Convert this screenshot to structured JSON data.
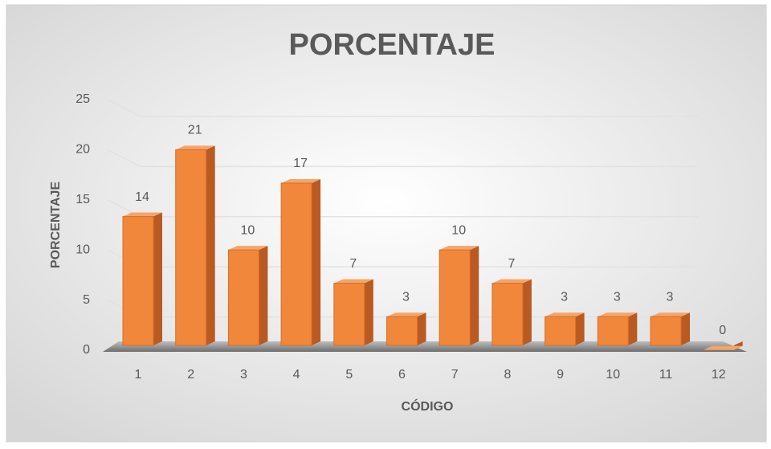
{
  "chart_data": {
    "type": "bar3d",
    "title": "PORCENTAJE",
    "x_label": "CÓDIGO",
    "y_label": "PORCENTAJE",
    "categories": [
      "1",
      "2",
      "3",
      "4",
      "5",
      "6",
      "7",
      "8",
      "9",
      "10",
      "11",
      "12"
    ],
    "values": [
      13.79,
      20.69,
      10.34,
      17.24,
      6.9,
      3.45,
      10.34,
      6.9,
      3.45,
      3.45,
      3.45,
      0
    ],
    "value_labels": [
      "14",
      "21",
      "10",
      "17",
      "7",
      "3",
      "10",
      "7",
      "3",
      "3",
      "3",
      "0"
    ],
    "color": "#f0873a",
    "ylim": [
      0,
      25
    ],
    "yticks": [
      0,
      5,
      10,
      15,
      20,
      25
    ],
    "grid": true
  }
}
